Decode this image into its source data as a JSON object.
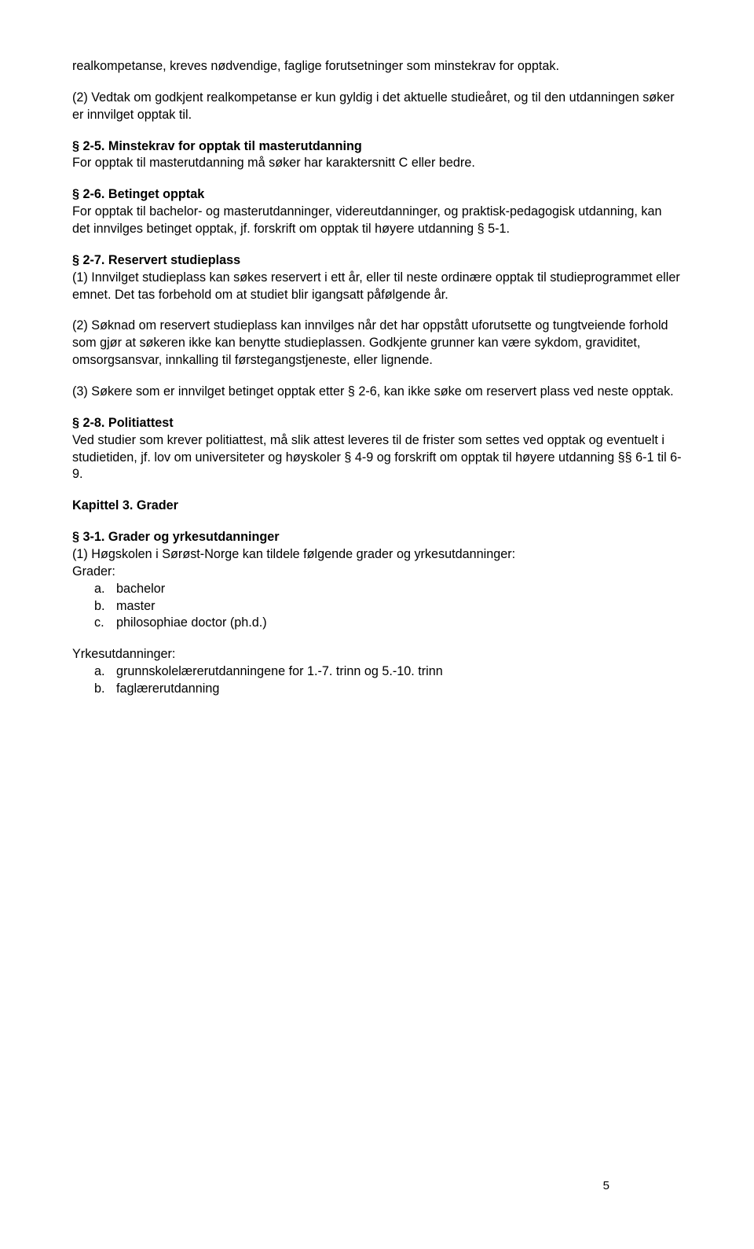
{
  "p_intro": "realkompetanse, kreves nødvendige, faglige forutsetninger som minstekrav for opptak.",
  "p_intro2": "(2) Vedtak om godkjent realkompetanse er kun gyldig i det aktuelle studieåret, og til den utdanningen søker er innvilget opptak til.",
  "s25": {
    "title": "§ 2-5. Minstekrav for opptak til masterutdanning",
    "body": "For opptak til masterutdanning må søker har karaktersnitt C eller bedre."
  },
  "s26": {
    "title": "§ 2-6. Betinget opptak",
    "body": "For opptak til bachelor- og masterutdanninger, videreutdanninger, og praktisk-pedagogisk utdanning, kan det innvilges betinget opptak, jf. forskrift om opptak til høyere utdanning § 5-1."
  },
  "s27": {
    "title": "§ 2-7. Reservert studieplass",
    "p1": "(1) Innvilget studieplass kan søkes reservert i ett år, eller til neste ordinære opptak til studieprogrammet eller emnet. Det tas forbehold om at studiet blir igangsatt påfølgende år.",
    "p2": "(2) Søknad om reservert studieplass kan innvilges når det har oppstått uforutsette og tungtveiende forhold som gjør at søkeren ikke kan benytte studieplassen. Godkjente grunner kan være sykdom, graviditet, omsorgsansvar, innkalling til førstegangstjeneste, eller lignende.",
    "p3": "(3) Søkere som er innvilget betinget opptak etter § 2-6, kan ikke søke om reservert plass ved neste opptak."
  },
  "s28": {
    "title": "§ 2-8. Politiattest",
    "body": "Ved studier som krever politiattest, må slik attest leveres til de frister som settes ved opptak og eventuelt i studietiden, jf. lov om universiteter og høyskoler § 4-9 og forskrift om opptak til høyere utdanning §§ 6-1 til 6-9."
  },
  "ch3_title": "Kapittel 3. Grader",
  "s31": {
    "title": "§ 3-1. Grader og yrkesutdanninger",
    "intro": "(1) Høgskolen i Sørøst-Norge kan tildele følgende grader og yrkesutdanninger:",
    "grader_label": "Grader:",
    "grader": {
      "a": "bachelor",
      "b": "master",
      "c": "philosophiae doctor (ph.d.)"
    },
    "yrkes_label": "Yrkesutdanninger:",
    "yrkes": {
      "a": "grunnskolelærerutdanningene for 1.-7. trinn og 5.-10. trinn",
      "b": "faglærerutdanning"
    }
  },
  "markers": {
    "a": "a.",
    "b": "b.",
    "c": "c."
  },
  "page_number": "5"
}
